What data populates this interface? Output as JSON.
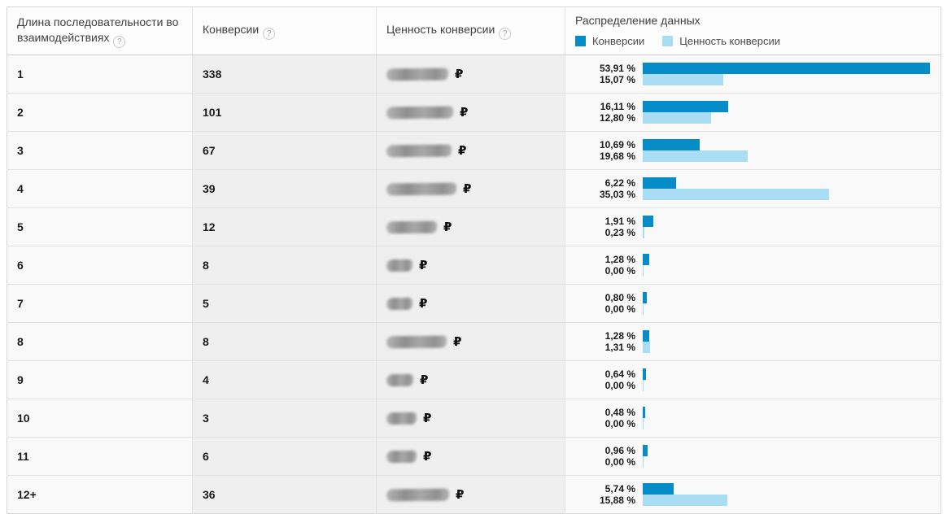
{
  "table": {
    "help_glyph": "?",
    "currency_symbol": "₽",
    "columns": {
      "path_length": {
        "label": "Длина последовательности во взаимодействиях"
      },
      "conversions": {
        "label": "Конверсии"
      },
      "conversion_value": {
        "label": "Ценность конверсии"
      },
      "distribution": {
        "label": "Распределение данных"
      }
    },
    "legend": [
      {
        "label": "Конверсии",
        "color": "#068cc6"
      },
      {
        "label": "Ценность конверсии",
        "color": "#a9ddf3"
      }
    ]
  },
  "rows": [
    {
      "path_length": "1",
      "conversions": "338",
      "value_redacted": true,
      "redact_width": 76,
      "conversions_pct": 53.91,
      "value_pct": 15.07,
      "conversions_pct_label": "53,91 %",
      "value_pct_label": "15,07 %"
    },
    {
      "path_length": "2",
      "conversions": "101",
      "value_redacted": true,
      "redact_width": 82,
      "conversions_pct": 16.11,
      "value_pct": 12.8,
      "conversions_pct_label": "16,11 %",
      "value_pct_label": "12,80 %"
    },
    {
      "path_length": "3",
      "conversions": "67",
      "value_redacted": true,
      "redact_width": 80,
      "conversions_pct": 10.69,
      "value_pct": 19.68,
      "conversions_pct_label": "10,69 %",
      "value_pct_label": "19,68 %"
    },
    {
      "path_length": "4",
      "conversions": "39",
      "value_redacted": true,
      "redact_width": 86,
      "conversions_pct": 6.22,
      "value_pct": 35.03,
      "conversions_pct_label": "6,22 %",
      "value_pct_label": "35,03 %"
    },
    {
      "path_length": "5",
      "conversions": "12",
      "value_redacted": true,
      "redact_width": 62,
      "conversions_pct": 1.91,
      "value_pct": 0.23,
      "conversions_pct_label": "1,91 %",
      "value_pct_label": "0,23 %"
    },
    {
      "path_length": "6",
      "conversions": "8",
      "value_redacted": true,
      "redact_width": 32,
      "conversions_pct": 1.28,
      "value_pct": 0.0,
      "conversions_pct_label": "1,28 %",
      "value_pct_label": "0,00 %"
    },
    {
      "path_length": "7",
      "conversions": "5",
      "value_redacted": true,
      "redact_width": 32,
      "conversions_pct": 0.8,
      "value_pct": 0.0,
      "conversions_pct_label": "0,80 %",
      "value_pct_label": "0,00 %"
    },
    {
      "path_length": "8",
      "conversions": "8",
      "value_redacted": true,
      "redact_width": 74,
      "conversions_pct": 1.28,
      "value_pct": 1.31,
      "conversions_pct_label": "1,28 %",
      "value_pct_label": "1,31 %"
    },
    {
      "path_length": "9",
      "conversions": "4",
      "value_redacted": true,
      "redact_width": 33,
      "conversions_pct": 0.64,
      "value_pct": 0.0,
      "conversions_pct_label": "0,64 %",
      "value_pct_label": "0,00 %"
    },
    {
      "path_length": "10",
      "conversions": "3",
      "value_redacted": true,
      "redact_width": 37,
      "conversions_pct": 0.48,
      "value_pct": 0.0,
      "conversions_pct_label": "0,48 %",
      "value_pct_label": "0,00 %"
    },
    {
      "path_length": "11",
      "conversions": "6",
      "value_redacted": true,
      "redact_width": 37,
      "conversions_pct": 0.96,
      "value_pct": 0.0,
      "conversions_pct_label": "0,96 %",
      "value_pct_label": "0,00 %"
    },
    {
      "path_length": "12+",
      "conversions": "36",
      "value_redacted": true,
      "redact_width": 77,
      "conversions_pct": 5.74,
      "value_pct": 15.88,
      "conversions_pct_label": "5,74 %",
      "value_pct_label": "15,88 %"
    }
  ],
  "chart_data": {
    "type": "bar",
    "orientation": "horizontal",
    "title": "Распределение данных",
    "unit": "%",
    "categories": [
      "1",
      "2",
      "3",
      "4",
      "5",
      "6",
      "7",
      "8",
      "9",
      "10",
      "11",
      "12+"
    ],
    "series": [
      {
        "name": "Конверсии",
        "color": "#068cc6",
        "values": [
          53.91,
          16.11,
          10.69,
          6.22,
          1.91,
          1.28,
          0.8,
          1.28,
          0.64,
          0.48,
          0.96,
          5.74
        ]
      },
      {
        "name": "Ценность конверсии",
        "color": "#a9ddf3",
        "values": [
          15.07,
          12.8,
          19.68,
          35.03,
          0.23,
          0.0,
          0.0,
          1.31,
          0.0,
          0.0,
          0.0,
          15.88
        ]
      }
    ],
    "xlim": [
      0,
      53.91
    ],
    "legend_position": "top",
    "grid": false
  }
}
